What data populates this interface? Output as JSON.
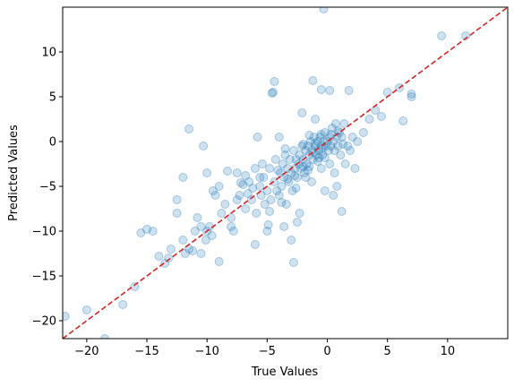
{
  "chart_data": {
    "type": "scatter",
    "xlabel": "True Values",
    "ylabel": "Predicted Values",
    "xlim": [
      -22,
      15
    ],
    "ylim": [
      -22,
      15
    ],
    "xticks": [
      -20,
      -15,
      -10,
      -5,
      0,
      5,
      10
    ],
    "yticks": [
      -20,
      -15,
      -10,
      -5,
      0,
      5,
      10
    ],
    "grid": false,
    "colors": {
      "points": "#1f77b4",
      "reference_line": "#d62728",
      "axes": "#000000"
    },
    "reference_line": {
      "style": "dashed",
      "from": [
        -22,
        -22
      ],
      "to": [
        15,
        15
      ]
    },
    "series": [
      {
        "points": [
          [
            -21.8,
            -19.5
          ],
          [
            -20.0,
            -18.8
          ],
          [
            -18.5,
            -22.0
          ],
          [
            -17.0,
            -18.2
          ],
          [
            -16.0,
            -16.2
          ],
          [
            -15.5,
            -10.2
          ],
          [
            -15.0,
            -9.8
          ],
          [
            -14.5,
            -10.0
          ],
          [
            -14.0,
            -12.8
          ],
          [
            -13.5,
            -13.6
          ],
          [
            -13.2,
            -13.0
          ],
          [
            -13.0,
            -12.0
          ],
          [
            -12.5,
            -6.5
          ],
          [
            -12.0,
            -11.0
          ],
          [
            -11.8,
            -12.5
          ],
          [
            -11.5,
            -12.0
          ],
          [
            -11.0,
            -10.0
          ],
          [
            -10.8,
            -8.5
          ],
          [
            -10.5,
            -9.5
          ],
          [
            -10.3,
            -0.5
          ],
          [
            -10.1,
            -11.0
          ],
          [
            -10.0,
            -10.0
          ],
          [
            -9.8,
            -9.5
          ],
          [
            -9.6,
            -10.5
          ],
          [
            -9.5,
            -5.5
          ],
          [
            -9.3,
            -6.0
          ],
          [
            -9.0,
            -5.0
          ],
          [
            -8.8,
            -8.0
          ],
          [
            -8.5,
            -7.0
          ],
          [
            -8.3,
            -3.3
          ],
          [
            -8.0,
            -9.5
          ],
          [
            -7.8,
            -10.0
          ],
          [
            -7.5,
            -3.5
          ],
          [
            -7.3,
            -6.0
          ],
          [
            -7.0,
            -4.8
          ],
          [
            -6.8,
            -7.5
          ],
          [
            -6.5,
            -4.5
          ],
          [
            -6.3,
            -6.5
          ],
          [
            -6.0,
            -3.0
          ],
          [
            -5.8,
            0.5
          ],
          [
            -5.6,
            -5.0
          ],
          [
            -5.5,
            -6.0
          ],
          [
            -5.3,
            -4.0
          ],
          [
            -5.2,
            -7.0
          ],
          [
            -5.0,
            -5.5
          ],
          [
            -4.8,
            -3.0
          ],
          [
            -4.7,
            -6.5
          ],
          [
            -4.5,
            5.5
          ],
          [
            -4.4,
            -4.5
          ],
          [
            -4.3,
            -2.0
          ],
          [
            -4.2,
            -5.5
          ],
          [
            -4.0,
            -6.0
          ],
          [
            -3.9,
            -3.5
          ],
          [
            -3.8,
            -5.0
          ],
          [
            -3.7,
            -2.5
          ],
          [
            -3.6,
            -4.0
          ],
          [
            -3.5,
            -1.5
          ],
          [
            -3.4,
            -7.0
          ],
          [
            -3.3,
            -3.0
          ],
          [
            -3.2,
            -4.5
          ],
          [
            -3.1,
            -2.0
          ],
          [
            -3.0,
            -3.5
          ],
          [
            -2.9,
            -5.5
          ],
          [
            -2.8,
            -1.0
          ],
          [
            -2.7,
            -3.0
          ],
          [
            -2.6,
            -2.0
          ],
          [
            -2.5,
            -4.0
          ],
          [
            -2.4,
            -2.5
          ],
          [
            -2.3,
            -1.5
          ],
          [
            -2.2,
            -3.0
          ],
          [
            -2.1,
            -0.5
          ],
          [
            -2.0,
            -2.0
          ],
          [
            -1.9,
            -3.5
          ],
          [
            -1.8,
            -1.0
          ],
          [
            -1.7,
            -2.5
          ],
          [
            -1.6,
            -0.5
          ],
          [
            -1.5,
            -1.5
          ],
          [
            -1.4,
            0.0
          ],
          [
            -1.3,
            -1.0
          ],
          [
            -1.2,
            -2.0
          ],
          [
            -1.1,
            0.5
          ],
          [
            -1.0,
            -0.5
          ],
          [
            -0.9,
            -1.5
          ],
          [
            -0.8,
            0.0
          ],
          [
            -0.7,
            -1.0
          ],
          [
            -0.6,
            0.5
          ],
          [
            -0.5,
            -0.5
          ],
          [
            -0.4,
            -1.5
          ],
          [
            -0.3,
            0.0
          ],
          [
            -0.2,
            1.0
          ],
          [
            -0.1,
            -0.5
          ],
          [
            0.0,
            0.0
          ],
          [
            0.1,
            -1.0
          ],
          [
            0.2,
            0.5
          ],
          [
            0.3,
            -0.5
          ],
          [
            0.4,
            1.5
          ],
          [
            0.5,
            0.0
          ],
          [
            0.6,
            -1.0
          ],
          [
            0.7,
            2.0
          ],
          [
            0.8,
            0.5
          ],
          [
            0.9,
            -0.5
          ],
          [
            1.0,
            1.0
          ],
          [
            1.1,
            -1.5
          ],
          [
            1.2,
            0.5
          ],
          [
            1.4,
            2.0
          ],
          [
            1.5,
            -2.5
          ],
          [
            1.7,
            -0.5
          ],
          [
            1.8,
            5.7
          ],
          [
            1.9,
            -1.0
          ],
          [
            2.1,
            0.5
          ],
          [
            2.3,
            -3.0
          ],
          [
            2.5,
            0.0
          ],
          [
            3.0,
            1.0
          ],
          [
            3.5,
            2.5
          ],
          [
            4.0,
            3.5
          ],
          [
            4.5,
            2.8
          ],
          [
            5.0,
            5.5
          ],
          [
            6.0,
            6.0
          ],
          [
            6.3,
            2.3
          ],
          [
            7.0,
            5.0
          ],
          [
            7.0,
            5.3
          ],
          [
            9.5,
            11.8
          ],
          [
            11.5,
            11.8
          ],
          [
            -8.0,
            -8.5
          ],
          [
            -7.5,
            -6.5
          ],
          [
            -6.8,
            -3.8
          ],
          [
            -6.2,
            -5.2
          ],
          [
            -5.9,
            -8.0
          ],
          [
            -4.9,
            -9.3
          ],
          [
            -4.6,
            5.4
          ],
          [
            -4.4,
            6.7
          ],
          [
            -3.6,
            -9.5
          ],
          [
            -2.3,
            -8.0
          ],
          [
            -2.8,
            -13.5
          ],
          [
            -1.5,
            -2.8
          ],
          [
            -1.3,
            -4.5
          ],
          [
            -0.5,
            -3.0
          ],
          [
            -0.2,
            -5.5
          ],
          [
            0.5,
            -6.0
          ],
          [
            0.8,
            -5.0
          ],
          [
            1.2,
            -7.8
          ],
          [
            -1.2,
            6.8
          ],
          [
            -0.5,
            5.8
          ],
          [
            0.2,
            5.7
          ],
          [
            -11.5,
            1.4
          ],
          [
            -10.0,
            -3.5
          ],
          [
            -6.0,
            -11.5
          ],
          [
            -5.0,
            -10.0
          ],
          [
            -3.0,
            -11.0
          ],
          [
            -2.5,
            -9.0
          ],
          [
            -1.8,
            -4.0
          ],
          [
            -9.0,
            -13.4
          ],
          [
            -10.5,
            -12.5
          ],
          [
            -11.2,
            -12.2
          ],
          [
            -12.0,
            -4.0
          ],
          [
            -12.5,
            -8.0
          ],
          [
            -2.1,
            3.2
          ],
          [
            -1.0,
            2.5
          ],
          [
            -0.5,
            0.8
          ],
          [
            -0.3,
            14.8
          ],
          [
            -4.0,
            0.5
          ],
          [
            -3.5,
            -0.8
          ],
          [
            -2.0,
            -0.3
          ],
          [
            -1.5,
            0.7
          ],
          [
            -1.0,
            -0.2
          ],
          [
            -0.8,
            -2.2
          ],
          [
            -0.2,
            -1.8
          ],
          [
            0.2,
            -2.5
          ],
          [
            0.6,
            -3.5
          ],
          [
            -2.6,
            -5.2
          ],
          [
            -3.8,
            -6.8
          ],
          [
            -5.6,
            -4.0
          ],
          [
            -4.1,
            -3.2
          ],
          [
            -3.3,
            -4.2
          ],
          [
            -2.7,
            -3.8
          ],
          [
            -2.0,
            -2.8
          ],
          [
            -1.6,
            -3.2
          ],
          [
            -1.1,
            -1.2
          ],
          [
            -0.7,
            -1.8
          ],
          [
            -0.4,
            -0.8
          ],
          [
            0.3,
            0.8
          ],
          [
            0.9,
            1.2
          ],
          [
            1.3,
            -0.3
          ],
          [
            -7.2,
            -4.6
          ],
          [
            -6.6,
            -5.8
          ],
          [
            -5.4,
            -2.5
          ],
          [
            -4.8,
            -7.8
          ]
        ]
      }
    ]
  }
}
